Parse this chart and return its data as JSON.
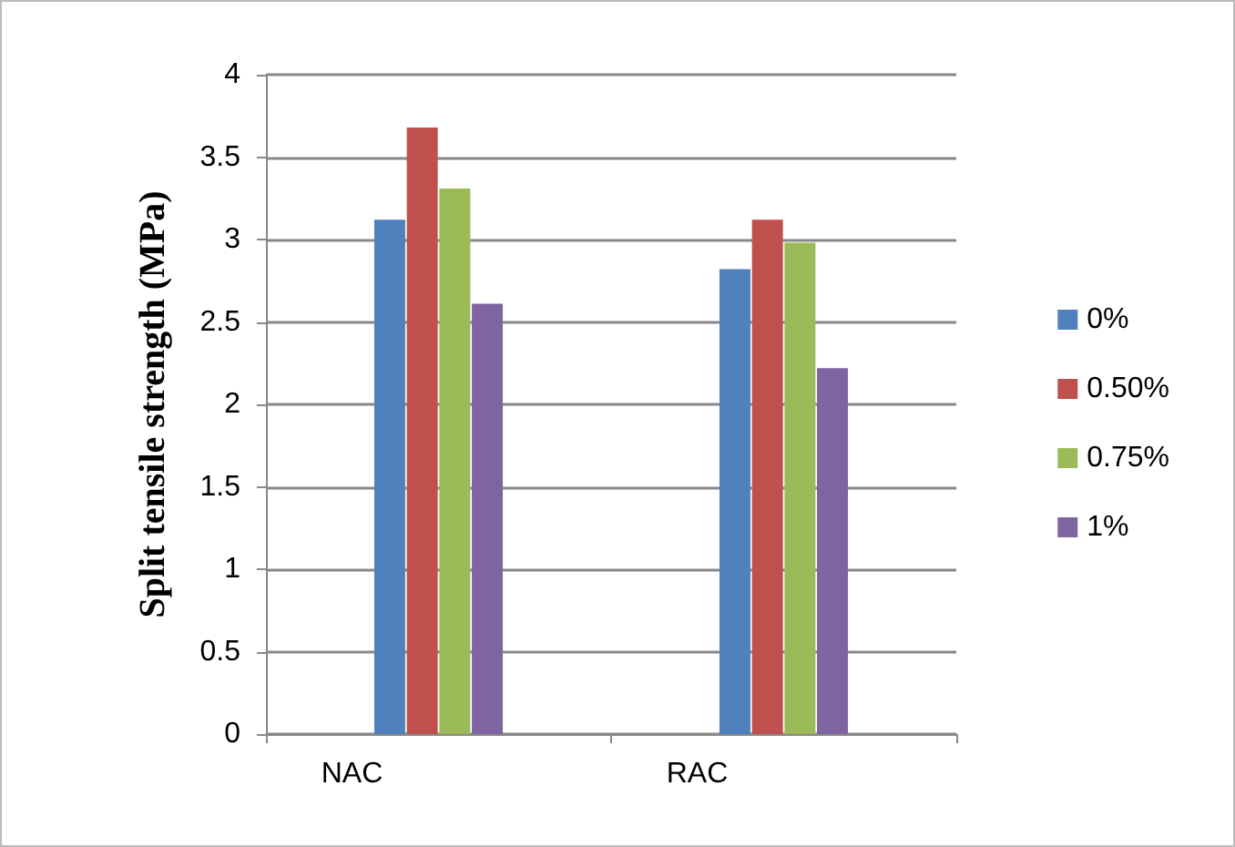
{
  "chart_data": {
    "type": "bar",
    "ylabel": "Split tensile strength (MPa)",
    "categories": [
      "NAC",
      "RAC"
    ],
    "series": [
      {
        "name": "0%",
        "color": "#4f81bd",
        "values": [
          3.12,
          2.82
        ]
      },
      {
        "name": "0.50%",
        "color": "#c0504d",
        "values": [
          3.68,
          3.12
        ]
      },
      {
        "name": "0.75%",
        "color": "#9bbb59",
        "values": [
          3.31,
          2.98
        ]
      },
      {
        "name": "1%",
        "color": "#8064a2",
        "values": [
          2.61,
          2.22
        ]
      }
    ],
    "ylim": [
      0,
      4
    ],
    "yticks": [
      0,
      0.5,
      1,
      1.5,
      2,
      2.5,
      3,
      3.5,
      4
    ],
    "grid": "y",
    "legend": "right"
  }
}
